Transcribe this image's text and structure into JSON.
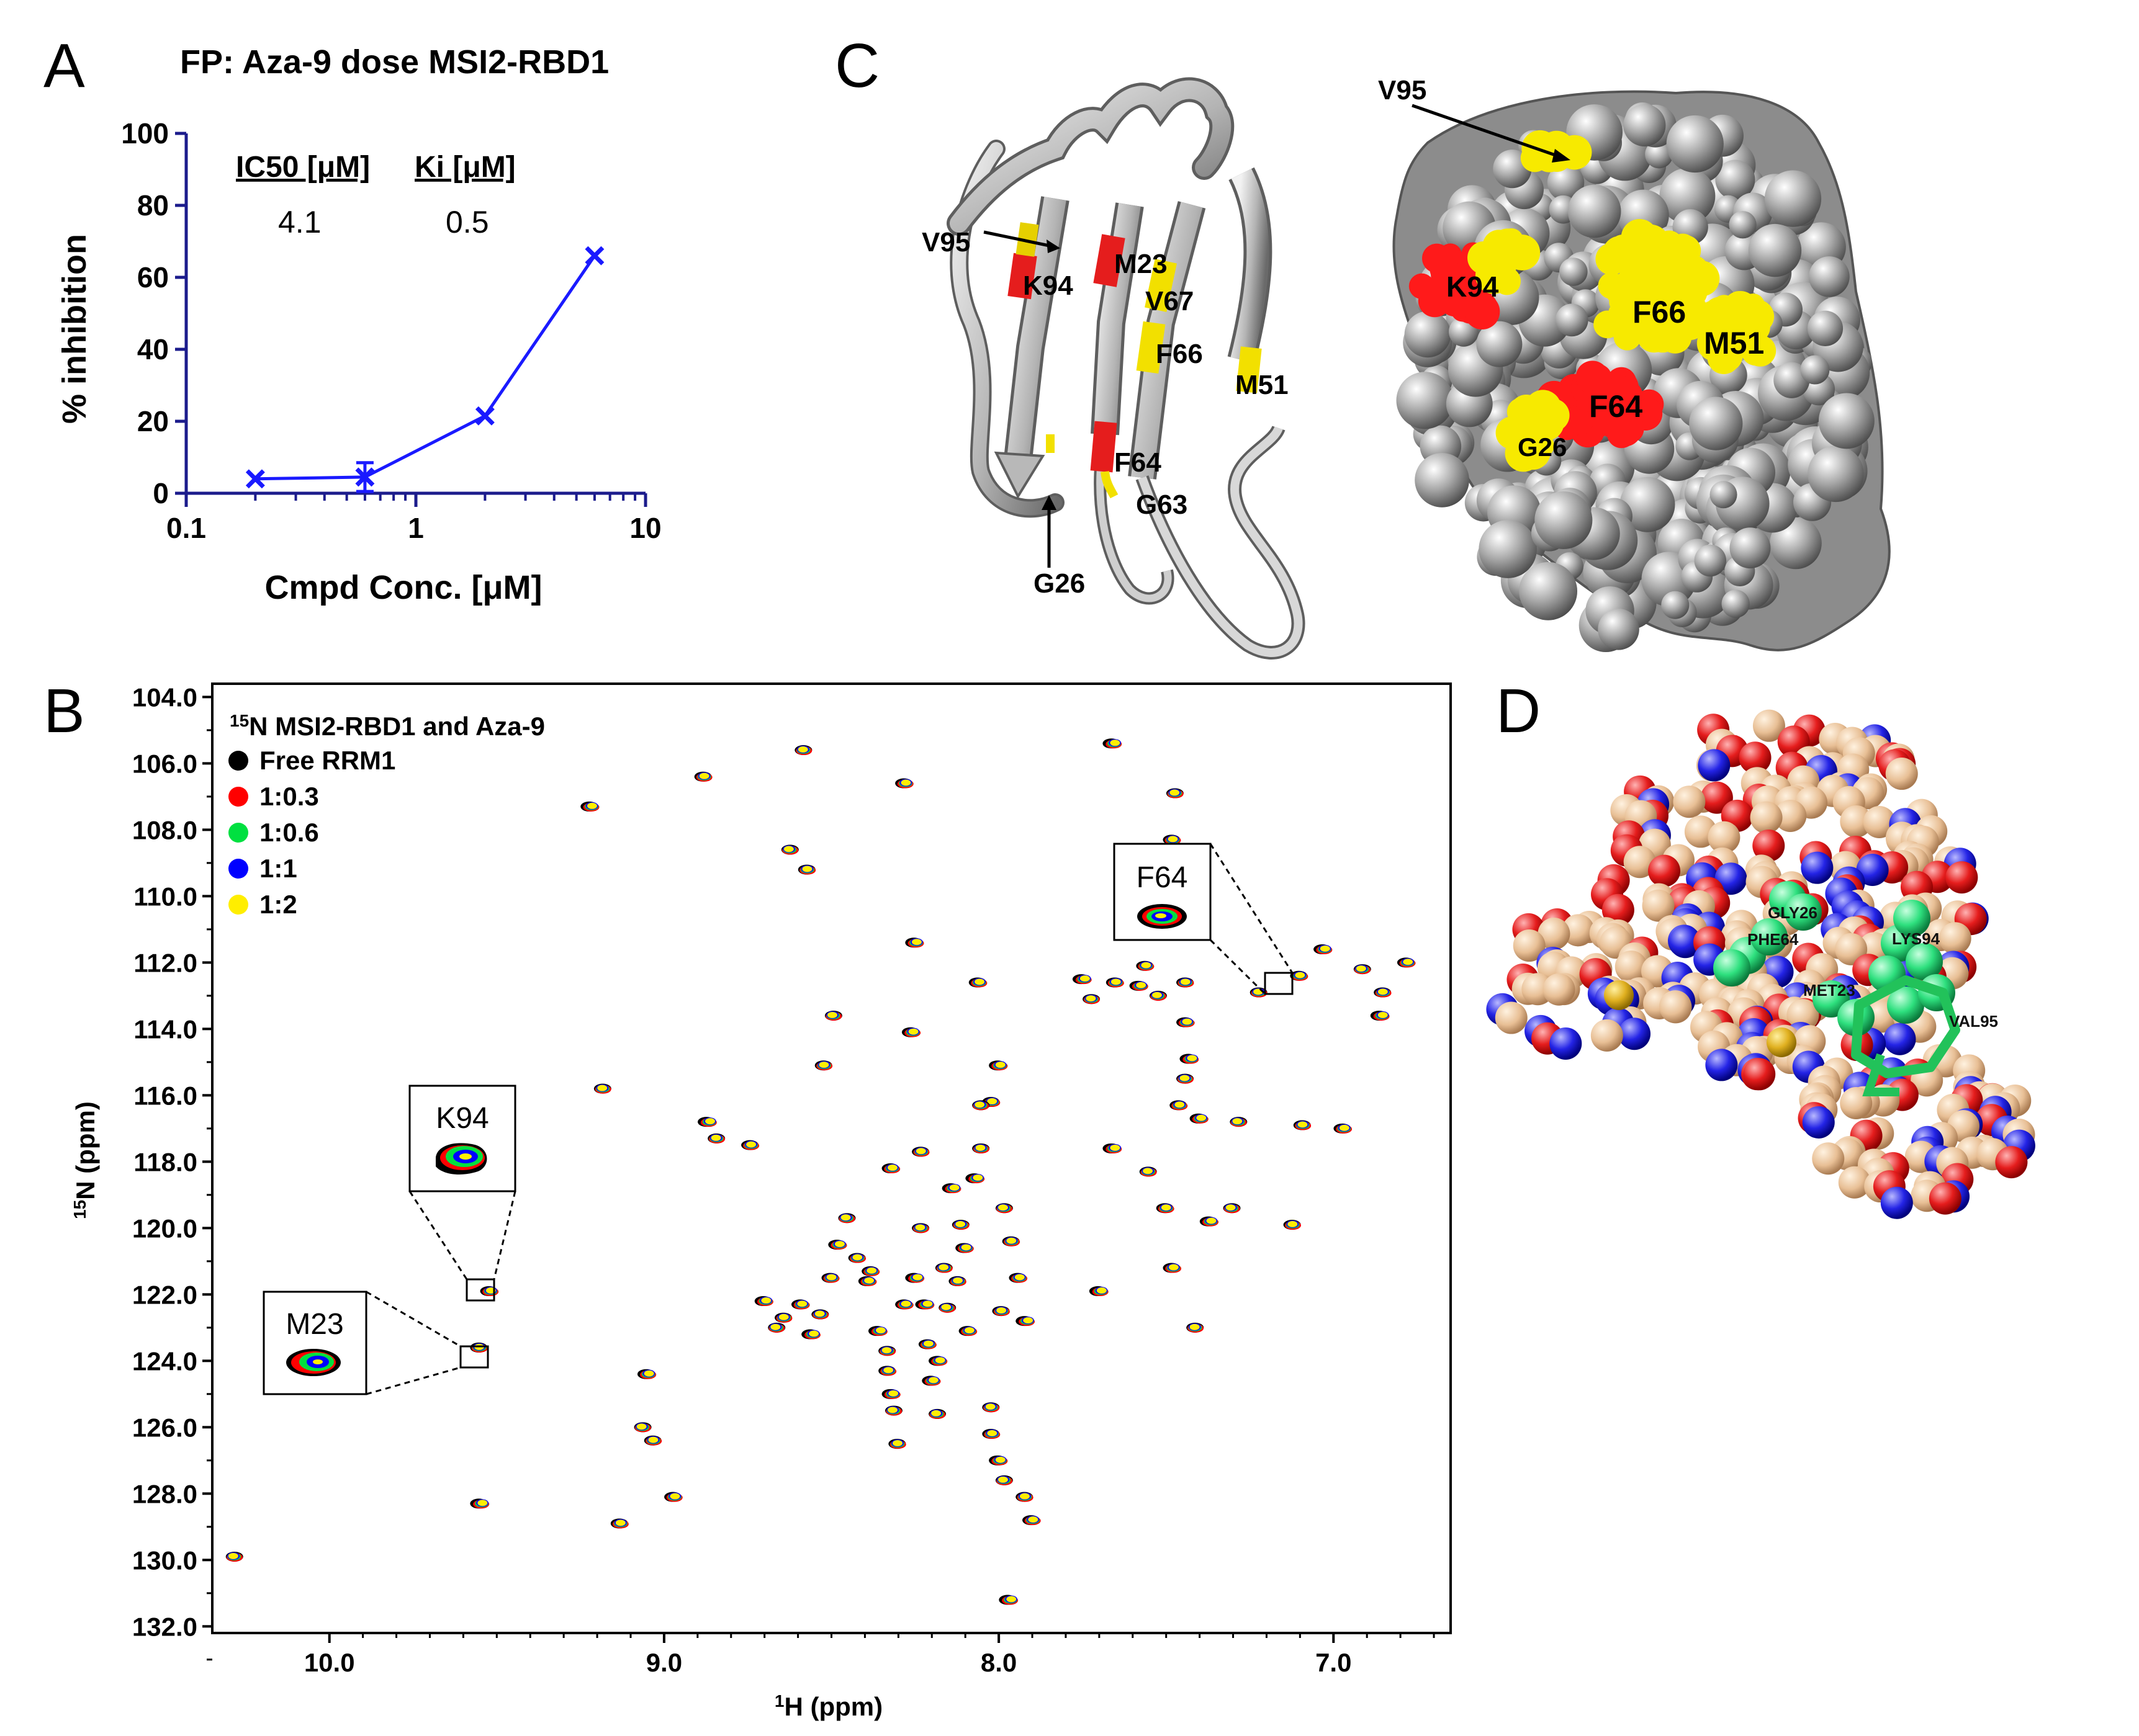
{
  "panels": {
    "A": {
      "letter": "A",
      "title": "FP: Aza-9 dose MSI2-RBD1",
      "table": {
        "h1": "IC50 [μM]",
        "h2": "Ki [μM]",
        "v1": "4.1",
        "v2": "0.5"
      }
    },
    "B": {
      "letter": "B",
      "legend_title_sup": "15",
      "legend_title": "N MSI2-RBD1 and Aza-9",
      "legend": [
        {
          "label": "Free RRM1",
          "color": "#000000"
        },
        {
          "label": "1:0.3",
          "color": "#ff0000"
        },
        {
          "label": "1:0.6",
          "color": "#00e040"
        },
        {
          "label": "1:1",
          "color": "#0000ff"
        },
        {
          "label": "1:2",
          "color": "#ffee00"
        }
      ],
      "insets": [
        "F64",
        "K94",
        "M23"
      ],
      "ylabel_sup": "15",
      "ylabel_rest": "N (ppm)",
      "xlabel_sup": "1",
      "xlabel_rest": "H (ppm)"
    },
    "C": {
      "letter": "C",
      "ribbon_labels": [
        "V95",
        "K94",
        "M23",
        "V67",
        "F66",
        "M51",
        "F64",
        "G63",
        "G26"
      ],
      "surface_labels": [
        "V95",
        "K94",
        "F66",
        "M51",
        "F64",
        "G26"
      ]
    },
    "D": {
      "letter": "D",
      "labels": [
        "GLY26",
        "PHE64",
        "LYS94",
        "MET23",
        "VAL95"
      ]
    }
  },
  "chart_data": [
    {
      "type": "line",
      "panel": "A",
      "title": "FP: Aza-9 dose MSI2-RBD1",
      "xlabel": "Cmpd Conc. [μM]",
      "ylabel": "% inhibition",
      "xscale": "log",
      "xlim": [
        0.1,
        10
      ],
      "ylim": [
        0,
        100
      ],
      "xticks": [
        "0.1",
        "1",
        "10"
      ],
      "yticks": [
        "0",
        "20",
        "40",
        "60",
        "80",
        "100"
      ],
      "color": "#1a1aff",
      "x": [
        0.2,
        0.6,
        2,
        6
      ],
      "y": [
        4,
        4.5,
        21.5,
        66
      ],
      "err": [
        0,
        4,
        0,
        0
      ]
    },
    {
      "type": "scatter",
      "panel": "B",
      "xlabel": "1H (ppm)",
      "ylabel": "15N (ppm)",
      "xlim": [
        10.35,
        6.65
      ],
      "ylim": [
        132.2,
        103.6
      ],
      "xticks": [
        "10.0",
        "9.0",
        "8.0",
        "7.0"
      ],
      "yticks": [
        "104.0",
        "106.0",
        "108.0",
        "110.0",
        "112.0",
        "114.0",
        "116.0",
        "118.0",
        "120.0",
        "122.0",
        "124.0",
        "126.0",
        "128.0",
        "130.0",
        "132.0"
      ],
      "peaks": [
        [
          10.28,
          129.9
        ],
        [
          9.55,
          123.6
        ],
        [
          9.52,
          121.9
        ],
        [
          9.55,
          128.3
        ],
        [
          9.18,
          115.8
        ],
        [
          9.13,
          128.9
        ],
        [
          9.05,
          124.4
        ],
        [
          9.06,
          126.0
        ],
        [
          9.03,
          126.4
        ],
        [
          8.97,
          128.1
        ],
        [
          8.87,
          116.8
        ],
        [
          8.84,
          117.3
        ],
        [
          8.74,
          117.5
        ],
        [
          8.7,
          122.2
        ],
        [
          8.66,
          123.0
        ],
        [
          8.64,
          122.7
        ],
        [
          8.59,
          122.3
        ],
        [
          8.56,
          123.2
        ],
        [
          8.53,
          122.6
        ],
        [
          8.5,
          121.5
        ],
        [
          8.48,
          120.5
        ],
        [
          8.45,
          119.7
        ],
        [
          8.42,
          120.9
        ],
        [
          8.39,
          121.6
        ],
        [
          8.36,
          123.1
        ],
        [
          8.33,
          123.7
        ],
        [
          8.33,
          124.3
        ],
        [
          8.32,
          125.0
        ],
        [
          8.31,
          125.5
        ],
        [
          8.3,
          126.5
        ],
        [
          8.28,
          122.3
        ],
        [
          8.25,
          121.5
        ],
        [
          8.23,
          120.0
        ],
        [
          8.21,
          123.5
        ],
        [
          8.18,
          124.0
        ],
        [
          8.15,
          122.4
        ],
        [
          8.12,
          121.6
        ],
        [
          8.1,
          120.6
        ],
        [
          8.07,
          118.5
        ],
        [
          8.05,
          117.6
        ],
        [
          8.02,
          116.2
        ],
        [
          8.0,
          115.1
        ],
        [
          7.98,
          119.4
        ],
        [
          7.96,
          120.4
        ],
        [
          7.94,
          121.5
        ],
        [
          7.92,
          122.8
        ],
        [
          8.02,
          125.4
        ],
        [
          8.02,
          126.2
        ],
        [
          8.0,
          127.0
        ],
        [
          7.98,
          127.6
        ],
        [
          7.92,
          128.1
        ],
        [
          7.9,
          128.8
        ],
        [
          7.97,
          131.2
        ],
        [
          8.58,
          105.6
        ],
        [
          8.88,
          106.4
        ],
        [
          9.22,
          107.3
        ],
        [
          8.62,
          108.6
        ],
        [
          8.57,
          109.2
        ],
        [
          8.28,
          106.6
        ],
        [
          7.66,
          105.4
        ],
        [
          7.47,
          106.9
        ],
        [
          7.48,
          108.3
        ],
        [
          8.25,
          111.4
        ],
        [
          8.49,
          113.6
        ],
        [
          8.52,
          115.1
        ],
        [
          8.06,
          112.6
        ],
        [
          7.75,
          112.5
        ],
        [
          7.72,
          113.1
        ],
        [
          7.65,
          112.6
        ],
        [
          7.58,
          112.7
        ],
        [
          7.52,
          113.0
        ],
        [
          7.44,
          112.6
        ],
        [
          7.44,
          113.8
        ],
        [
          7.43,
          114.9
        ],
        [
          7.44,
          115.5
        ],
        [
          7.46,
          116.3
        ],
        [
          7.4,
          116.7
        ],
        [
          7.28,
          116.8
        ],
        [
          7.09,
          116.9
        ],
        [
          6.97,
          117.0
        ],
        [
          7.66,
          117.6
        ],
        [
          7.55,
          118.3
        ],
        [
          7.5,
          119.4
        ],
        [
          7.37,
          119.8
        ],
        [
          7.3,
          119.4
        ],
        [
          7.12,
          119.9
        ],
        [
          7.48,
          121.2
        ],
        [
          7.7,
          121.9
        ],
        [
          7.41,
          123.0
        ],
        [
          7.1,
          112.4
        ],
        [
          7.03,
          111.6
        ],
        [
          6.91,
          112.2
        ],
        [
          6.85,
          112.9
        ],
        [
          6.78,
          112.0
        ],
        [
          6.86,
          113.6
        ],
        [
          7.22,
          112.9
        ],
        [
          7.56,
          112.1
        ],
        [
          8.26,
          114.1
        ],
        [
          8.05,
          116.3
        ],
        [
          8.23,
          117.7
        ],
        [
          8.32,
          118.2
        ],
        [
          8.14,
          118.8
        ],
        [
          8.11,
          119.9
        ],
        [
          8.38,
          121.3
        ],
        [
          8.2,
          124.6
        ],
        [
          8.18,
          125.6
        ],
        [
          7.99,
          122.5
        ],
        [
          8.09,
          123.1
        ],
        [
          8.22,
          122.3
        ],
        [
          8.16,
          121.2
        ]
      ]
    }
  ]
}
